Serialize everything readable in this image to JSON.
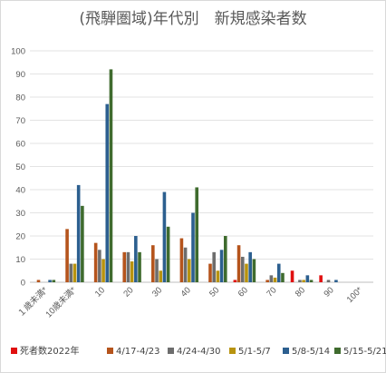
{
  "chart_data": {
    "type": "bar",
    "title": "(飛騨圏域)年代別　新規感染者数",
    "xlabel": "",
    "ylabel": "",
    "ylim": [
      0,
      100
    ],
    "yticks": [
      0,
      10,
      20,
      30,
      40,
      50,
      60,
      70,
      80,
      90,
      100
    ],
    "grid": true,
    "legend_position": "bottom",
    "categories": [
      "１歳未満*",
      "10歳未満*",
      "10",
      "20",
      "30",
      "40",
      "50",
      "60",
      "70",
      "80",
      "90",
      "100*"
    ],
    "series": [
      {
        "name": "死者数2022年",
        "color": "#e01010",
        "values": [
          0,
          0,
          0,
          0,
          0,
          0,
          0,
          1,
          0,
          5,
          3,
          0
        ]
      },
      {
        "name": "4/17-4/23",
        "color": "#b5541c",
        "values": [
          1,
          23,
          17,
          13,
          16,
          19,
          8,
          16,
          1,
          0,
          0,
          0
        ]
      },
      {
        "name": "4/24-4/30",
        "color": "#6d6d6d",
        "values": [
          0,
          8,
          14,
          13,
          10,
          15,
          13,
          11,
          3,
          1,
          1,
          0
        ]
      },
      {
        "name": "5/1-5/7",
        "color": "#b8930f",
        "values": [
          0,
          8,
          10,
          9,
          5,
          10,
          5,
          8,
          2,
          1,
          0,
          0
        ]
      },
      {
        "name": "5/8-5/14",
        "color": "#2c5f8f",
        "values": [
          1,
          42,
          77,
          20,
          39,
          30,
          14,
          13,
          8,
          3,
          1,
          0
        ]
      },
      {
        "name": "5/15-5/21",
        "color": "#3f6b2e",
        "values": [
          1,
          33,
          92,
          13,
          24,
          41,
          20,
          10,
          4,
          1,
          0,
          0
        ]
      }
    ]
  }
}
